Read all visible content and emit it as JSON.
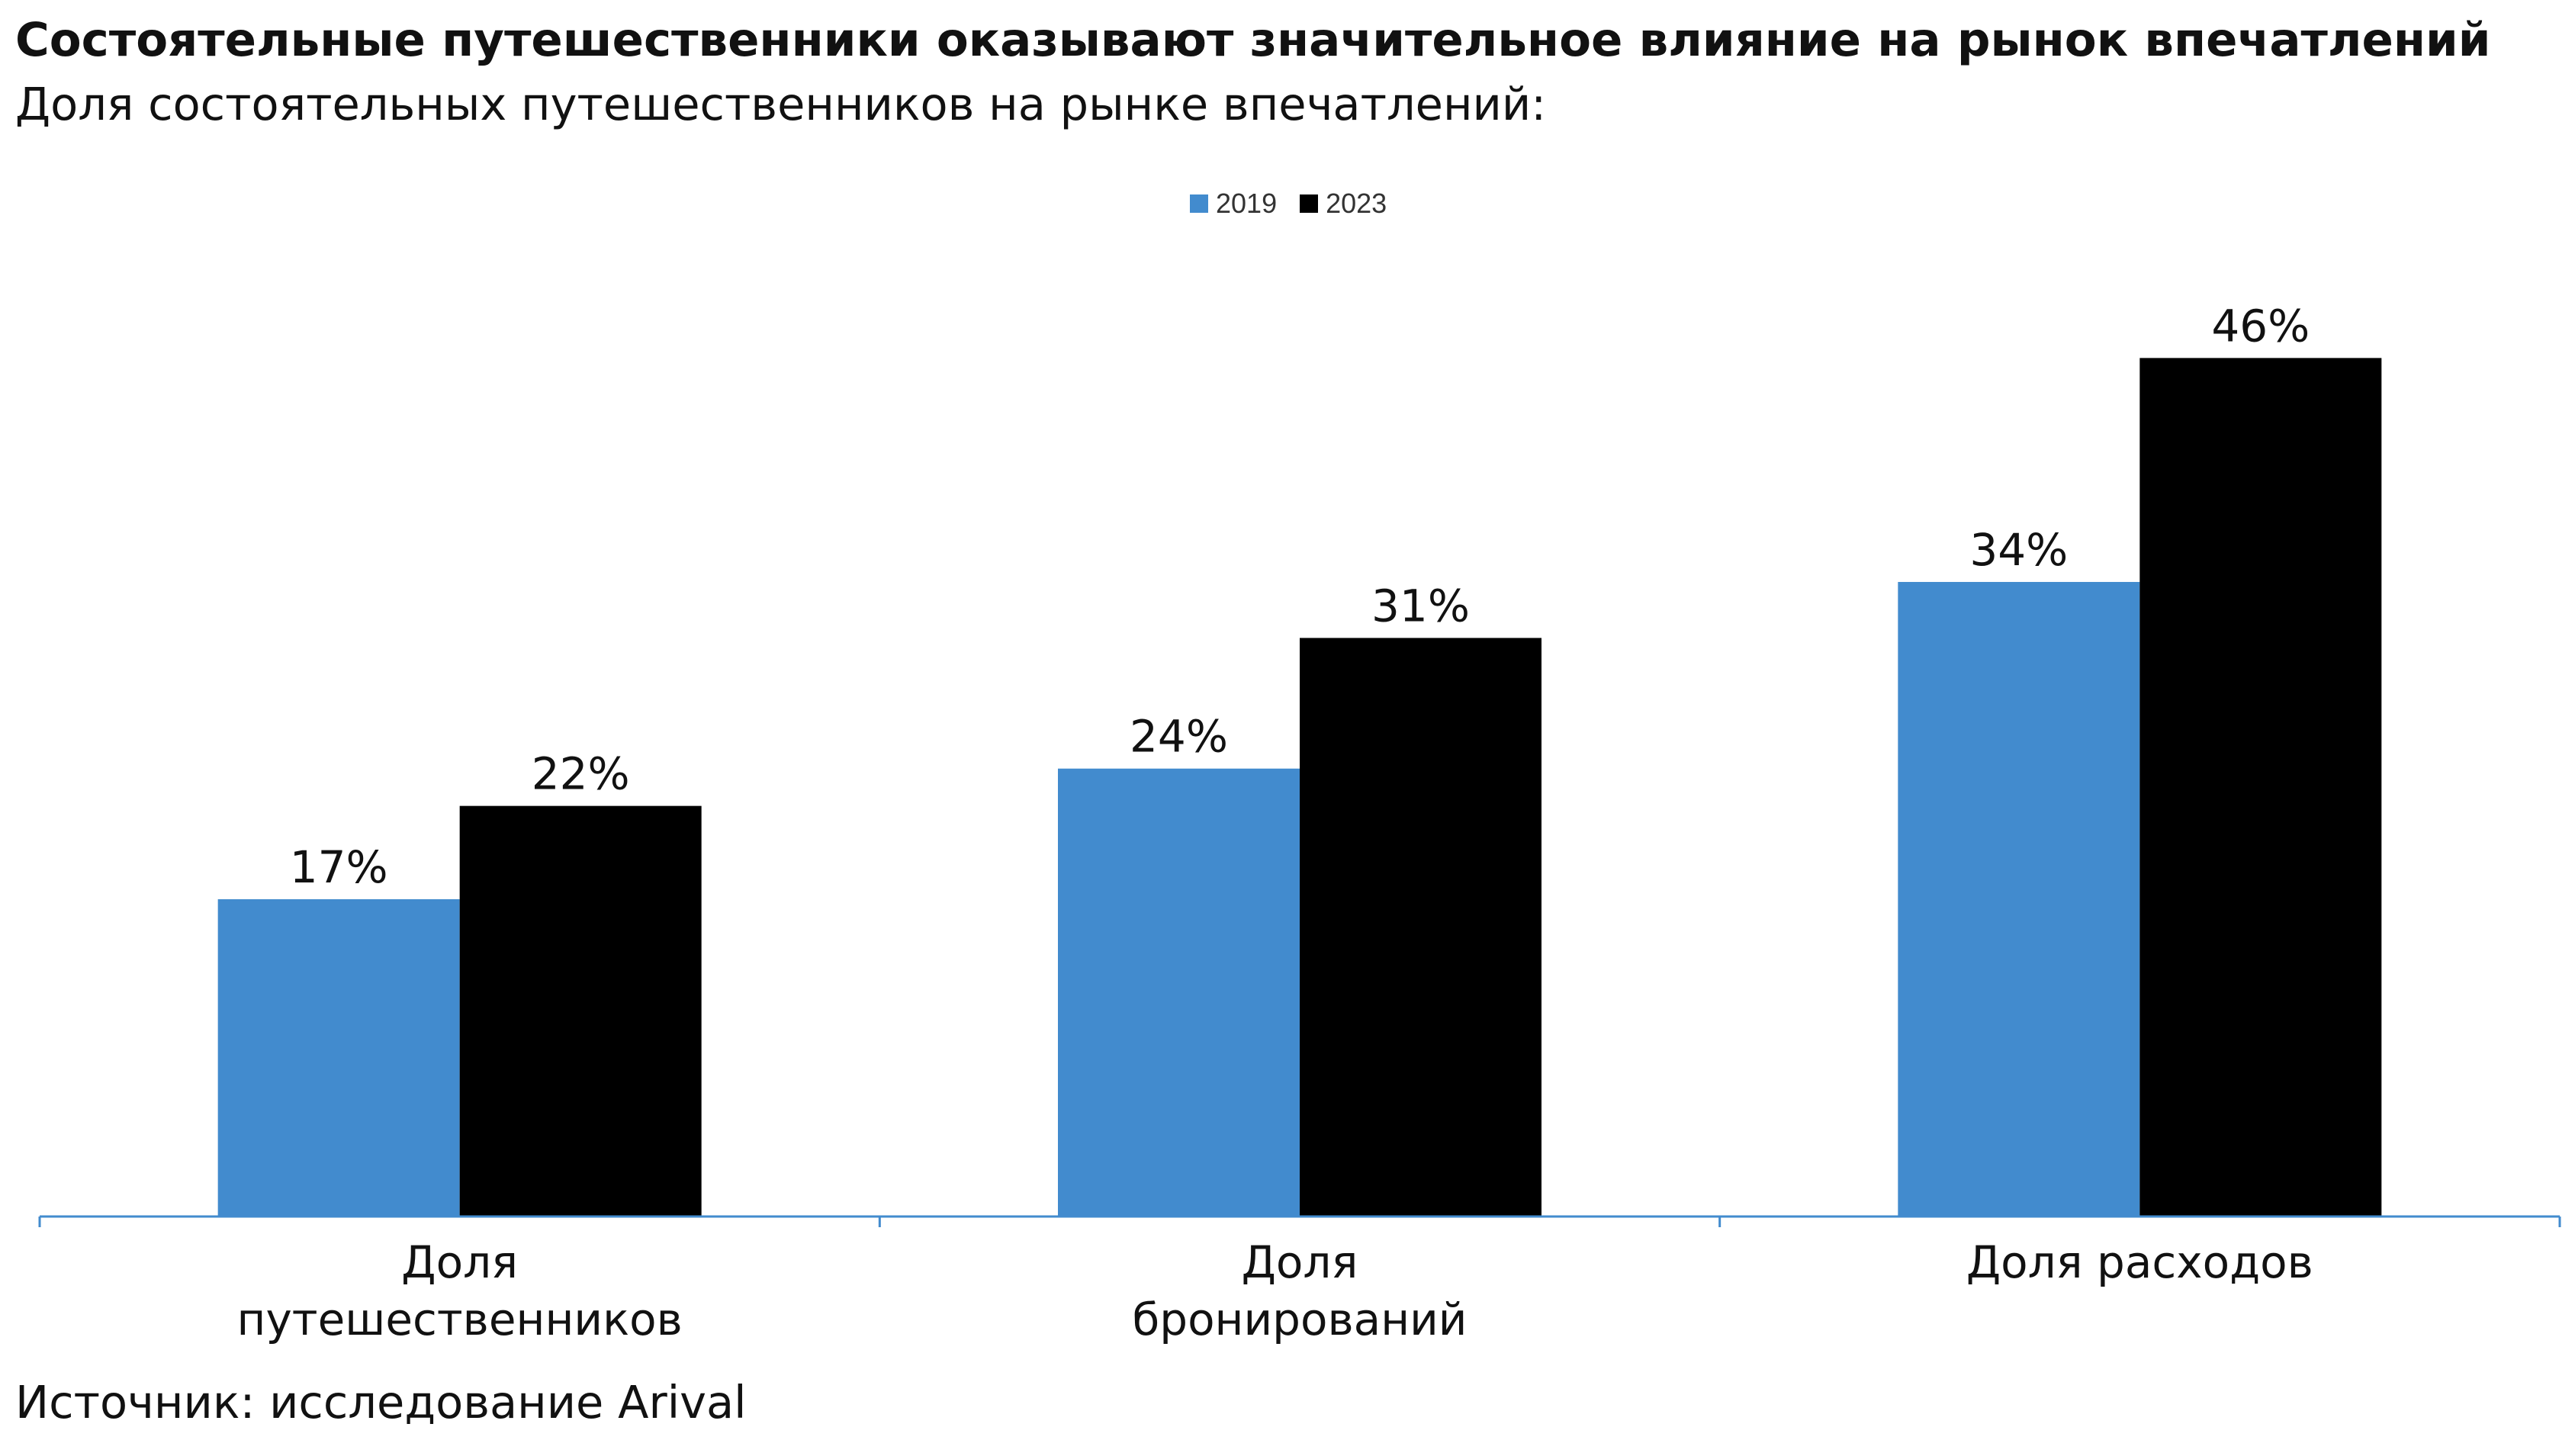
{
  "header": {
    "title": "Состоятельные путешественники оказывают значительное влияние на рынок впечатлений",
    "subtitle": "Доля состоятельных путешественников на рынке впечатлений:"
  },
  "footer": {
    "source": "Источник: исследование Arival"
  },
  "colors": {
    "series_2019": "#428bce",
    "series_2023": "#000000",
    "axis": "#428bce"
  },
  "chart_data": {
    "type": "bar",
    "title": "Состоятельные путешественники оказывают значительное влияние на рынок впечатлений",
    "subtitle": "Доля состоятельных путешественников на рынке впечатлений:",
    "categories": [
      "Доля путешественников",
      "Доля бронирований",
      "Доля расходов"
    ],
    "category_lines": [
      [
        "Доля",
        "путешественников"
      ],
      [
        "Доля",
        "бронирований"
      ],
      [
        "Доля расходов"
      ]
    ],
    "series": [
      {
        "name": "2019",
        "values": [
          17,
          24,
          34
        ],
        "labels": [
          "17%",
          "24%",
          "34%"
        ]
      },
      {
        "name": "2023",
        "values": [
          22,
          31,
          46
        ],
        "labels": [
          "22%",
          "31%",
          "46%"
        ]
      }
    ],
    "xlabel": "",
    "ylabel": "",
    "ylim": [
      0,
      50
    ],
    "grid": false,
    "legend": "top-center",
    "source": "Источник: исследование Arival"
  }
}
